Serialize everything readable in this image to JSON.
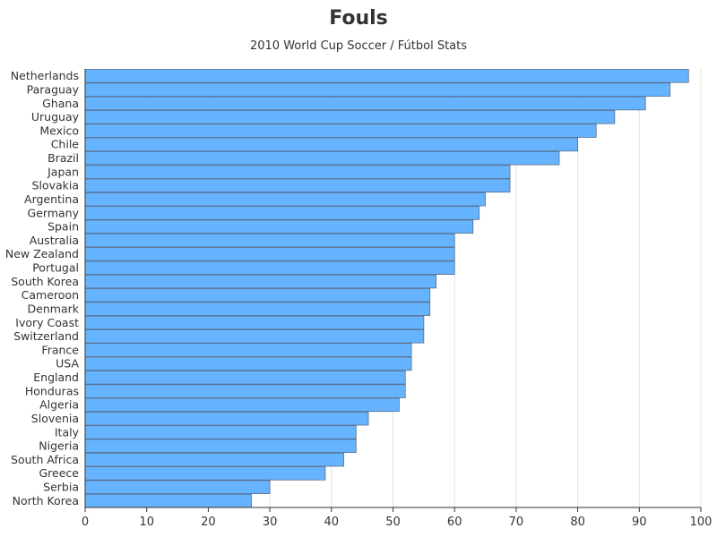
{
  "chart_data": {
    "type": "bar",
    "orientation": "horizontal",
    "title": "Fouls",
    "subtitle": "2010 World Cup Soccer / Fútbol Stats",
    "xlabel": "",
    "ylabel": "",
    "xlim": [
      0,
      100
    ],
    "xticks": [
      0,
      10,
      20,
      30,
      40,
      50,
      60,
      70,
      80,
      90,
      100
    ],
    "grid": "vertical",
    "bar_color": "#66b3ff",
    "bar_edge_color": "#5a6e8c",
    "categories": [
      "Netherlands",
      "Paraguay",
      "Ghana",
      "Uruguay",
      "Mexico",
      "Chile",
      "Brazil",
      "Japan",
      "Slovakia",
      "Argentina",
      "Germany",
      "Spain",
      "Australia",
      "New Zealand",
      "Portugal",
      "South Korea",
      "Cameroon",
      "Denmark",
      "Ivory Coast",
      "Switzerland",
      "France",
      "USA",
      "England",
      "Honduras",
      "Algeria",
      "Slovenia",
      "Italy",
      "Nigeria",
      "South Africa",
      "Greece",
      "Serbia",
      "North Korea"
    ],
    "values": [
      98,
      95,
      91,
      86,
      83,
      80,
      77,
      69,
      69,
      65,
      64,
      63,
      60,
      60,
      60,
      57,
      56,
      56,
      55,
      55,
      53,
      53,
      52,
      52,
      51,
      46,
      44,
      44,
      42,
      39,
      30,
      27
    ]
  }
}
